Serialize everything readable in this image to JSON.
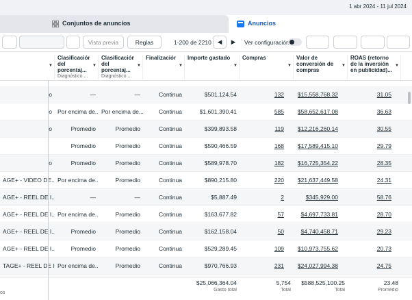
{
  "header": {
    "date_range": "1 abr 2024 - 11 jul 2024",
    "tabs": [
      "Conjuntos de anuncios",
      "Anuncios"
    ]
  },
  "toolbar": {
    "preview": "Vista previa",
    "rules": "Reglas",
    "pagination": "1-200 de 2210",
    "view_settings": "Ver configuración"
  },
  "table": {
    "columns": [
      {
        "title": "",
        "subtitle": ""
      },
      {
        "title": "Clasificación del porcentaj...",
        "subtitle": "Diagnóstico ..."
      },
      {
        "title": "Clasificación del porcentaj...",
        "subtitle": "Diagnóstico ..."
      },
      {
        "title": "Finalización",
        "subtitle": ""
      },
      {
        "title": "Importe gastado",
        "subtitle": ""
      },
      {
        "title": "Compras",
        "subtitle": ""
      },
      {
        "title": "Valor de conversión de compras",
        "subtitle": ""
      },
      {
        "title": "ROAS (retorno de la inversión en publicidad)...",
        "subtitle": ""
      }
    ],
    "rows": [
      [
        "o",
        "—",
        "—",
        "Continua",
        "$501,124.54",
        "132",
        "$15,558,768.32",
        "31.05"
      ],
      [
        "o",
        "Por encima de...",
        "Por encima de...",
        "Continua",
        "$1,601,390.41",
        "585",
        "$58,652,617.08",
        "36.63"
      ],
      [
        "o",
        "Promedio",
        "Promedio",
        "Continua",
        "$399,893.58",
        "119",
        "$12,216,260.14",
        "30.55"
      ],
      [
        "",
        "Promedio",
        "Promedio",
        "Continua",
        "$590,466.59",
        "168",
        "$17,589,415.10",
        "29.79"
      ],
      [
        "o",
        "Promedio",
        "Promedio",
        "Continua",
        "$589,978.70",
        "182",
        "$16,725,354.22",
        "28.35"
      ],
      [
        "AGE+ - VIDEO DE...",
        "Por encima de...",
        "Promedio",
        "Continua",
        "$890,215.80",
        "220",
        "$21,637,449.58",
        "24.31"
      ],
      [
        "AGE+ - REEL DE I...",
        "—",
        "—",
        "Continua",
        "$5,887.49",
        "2",
        "$345,929.00",
        "58.76"
      ],
      [
        "AGE+ - REEL DE I...",
        "Por encima de...",
        "Promedio",
        "Continua",
        "$163,677.82",
        "57",
        "$4,697,733.81",
        "28.70"
      ],
      [
        "AGE+ - REEL DE I...",
        "Promedio",
        "Promedio",
        "Continua",
        "$162,158.04",
        "50",
        "$4,740,458.71",
        "29.23"
      ],
      [
        "AGE+ - REEL DE I...",
        "Promedio",
        "Promedio",
        "Continua",
        "$529,289.45",
        "109",
        "$10,973,755.62",
        "20.73"
      ],
      [
        "TAGE+ - REEL DE I...",
        "Por encima de...",
        "Promedio",
        "Continua",
        "$970,766.93",
        "231",
        "$24,027,994.38",
        "24.75"
      ]
    ],
    "totals": {
      "label": "os",
      "cells": [
        {
          "col": 4,
          "value": "$25,066,364.04",
          "caption": "Gasto total"
        },
        {
          "col": 5,
          "value": "5,754",
          "caption": "Total"
        },
        {
          "col": 6,
          "value": "$588,525,100.25",
          "caption": "Total"
        },
        {
          "col": 7,
          "value": "23.48",
          "caption": "Promedio"
        }
      ]
    }
  }
}
